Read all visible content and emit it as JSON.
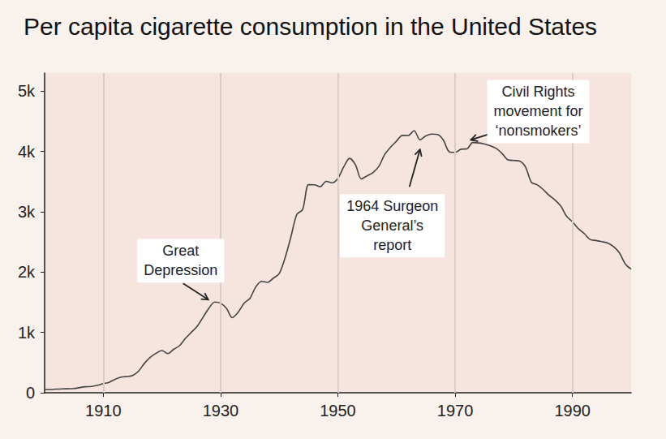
{
  "chart_data": {
    "type": "line",
    "title": "Per capita cigarette consumption in the United States",
    "color": "#444444",
    "grid": true,
    "xlim": [
      1900,
      2000
    ],
    "xticks": [
      1910,
      1930,
      1950,
      1970,
      1990
    ],
    "ylim": [
      0,
      5300
    ],
    "yticks": [
      0,
      {
        "value": 1000,
        "label": "1k"
      },
      {
        "value": 2000,
        "label": "2k"
      },
      {
        "value": 3000,
        "label": "3k"
      },
      {
        "value": 4000,
        "label": "4k"
      },
      {
        "value": 5000,
        "label": "5k"
      }
    ],
    "x": [
      1900,
      1901,
      1902,
      1903,
      1904,
      1905,
      1906,
      1907,
      1908,
      1909,
      1910,
      1911,
      1912,
      1913,
      1914,
      1915,
      1916,
      1917,
      1918,
      1919,
      1920,
      1921,
      1922,
      1923,
      1924,
      1925,
      1926,
      1927,
      1928,
      1929,
      1930,
      1931,
      1932,
      1933,
      1934,
      1935,
      1936,
      1937,
      1938,
      1939,
      1940,
      1941,
      1942,
      1943,
      1944,
      1945,
      1946,
      1947,
      1948,
      1949,
      1950,
      1951,
      1952,
      1953,
      1954,
      1955,
      1956,
      1957,
      1958,
      1959,
      1960,
      1961,
      1962,
      1963,
      1964,
      1965,
      1966,
      1967,
      1968,
      1969,
      1970,
      1971,
      1972,
      1973,
      1974,
      1975,
      1976,
      1977,
      1978,
      1979,
      1980,
      1981,
      1982,
      1983,
      1984,
      1985,
      1986,
      1987,
      1988,
      1989,
      1990,
      1991,
      1992,
      1993,
      1994,
      1995,
      1996,
      1997,
      1998,
      1999,
      2000
    ],
    "values": [
      54,
      53,
      60,
      64,
      66,
      70,
      86,
      99,
      105,
      125,
      151,
      173,
      223,
      260,
      267,
      285,
      357,
      486,
      586,
      654,
      700,
      650,
      720,
      780,
      900,
      1000,
      1100,
      1250,
      1400,
      1504,
      1485,
      1399,
      1245,
      1334,
      1483,
      1564,
      1754,
      1847,
      1830,
      1900,
      1976,
      2236,
      2585,
      2956,
      3039,
      3449,
      3446,
      3416,
      3505,
      3480,
      3552,
      3744,
      3886,
      3778,
      3546,
      3597,
      3650,
      3755,
      3953,
      4073,
      4171,
      4266,
      4265,
      4345,
      4194,
      4258,
      4287,
      4280,
      4186,
      3993,
      3985,
      4037,
      4043,
      4148,
      4141,
      4123,
      4092,
      4051,
      3967,
      3861,
      3851,
      3840,
      3742,
      3488,
      3446,
      3370,
      3274,
      3197,
      3096,
      2926,
      2834,
      2720,
      2640,
      2540,
      2524,
      2505,
      2482,
      2423,
      2320,
      2136,
      2049
    ],
    "annotations": [
      {
        "text": "Great\nDepression",
        "x": 1929
      },
      {
        "text": "1964 Surgeon\nGeneral’s\nreport",
        "x": 1964
      },
      {
        "text": "Civil Rights\nmovement for\n‘nonsmokers’",
        "x": 1972
      }
    ]
  }
}
